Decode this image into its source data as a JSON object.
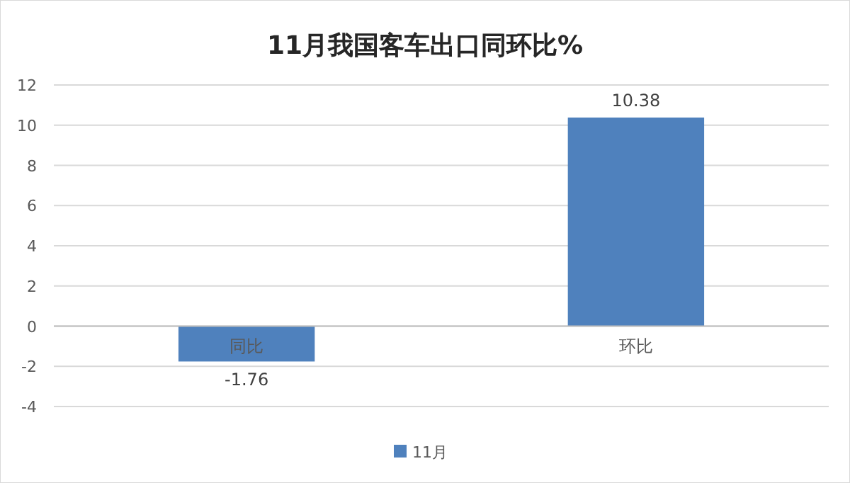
{
  "chart_data": {
    "type": "bar",
    "title": "11月我国客车出口同环比%",
    "categories": [
      "同比",
      "环比"
    ],
    "series": [
      {
        "name": "11月",
        "color": "#4f81bd",
        "values": [
          -1.76,
          10.38
        ]
      }
    ],
    "ylim": [
      -4,
      12
    ],
    "yticks": [
      -4,
      -2,
      0,
      2,
      4,
      6,
      8,
      10,
      12
    ],
    "grid": "y",
    "legend": "bottom",
    "data_labels": true
  }
}
